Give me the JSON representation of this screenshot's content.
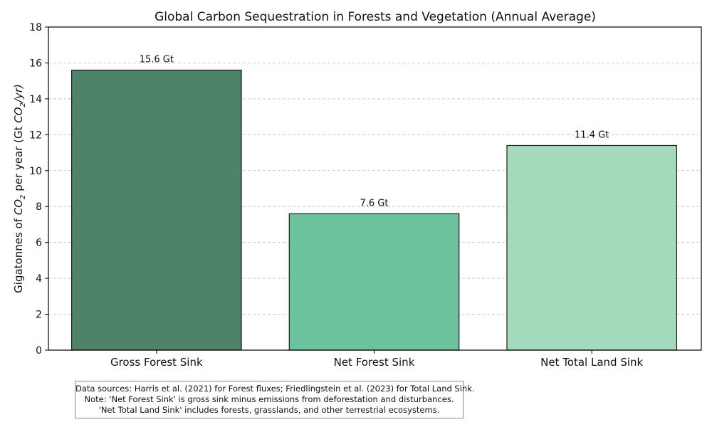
{
  "chart_data": {
    "type": "bar",
    "title": "Global Carbon Sequestration in Forests and Vegetation (Annual Average)",
    "xlabel": "",
    "ylabel": "Gigatonnes of CO₂ per year (Gt CO₂/yr)",
    "ylabel_parts": {
      "pre": "Gigatonnes of ",
      "co2_a": "CO",
      "sub_a": "2",
      "mid": " per year (Gt ",
      "co2_b": "CO",
      "sub_b": "2",
      "post": "/yr)"
    },
    "ylim": [
      0,
      18
    ],
    "yticks": [
      0,
      2,
      4,
      6,
      8,
      10,
      12,
      14,
      16,
      18
    ],
    "grid": "y-dashed",
    "categories": [
      "Gross Forest Sink",
      "Net Forest Sink",
      "Net Total Land Sink"
    ],
    "values": [
      15.6,
      7.6,
      11.4
    ],
    "data_labels": [
      "15.6 Gt",
      "7.6 Gt",
      "11.4 Gt"
    ],
    "colors": [
      "#4e8369",
      "#6bc29d",
      "#a3dbbc"
    ],
    "edge_color": "#1a1a1a",
    "grid_color": "#c8c8c8"
  },
  "note": {
    "lines": [
      "Data sources: Harris et al. (2021) for Forest fluxes; Friedlingstein et al. (2023) for Total Land Sink.",
      "Note: 'Net Forest Sink' is gross sink minus emissions from deforestation and disturbances.",
      "'Net Total Land Sink' includes forests, grasslands, and other terrestrial ecosystems."
    ]
  }
}
